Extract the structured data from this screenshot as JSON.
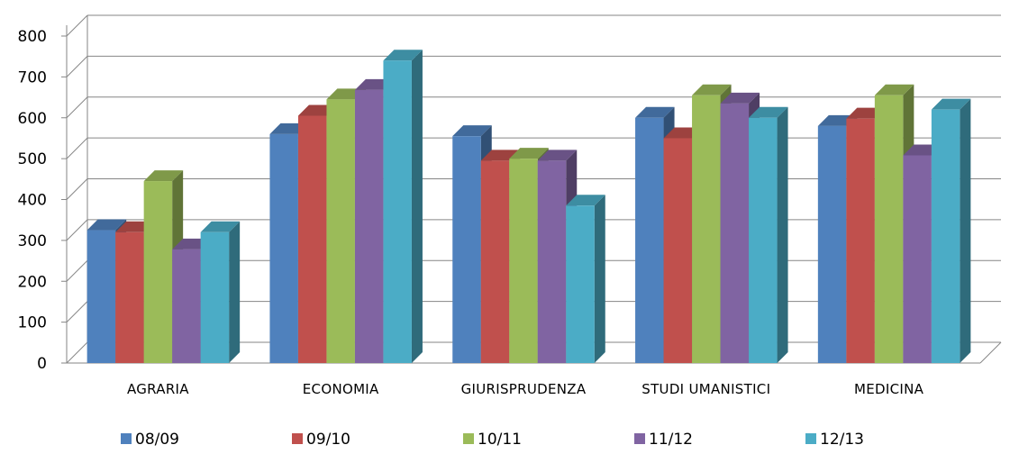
{
  "chart_data": {
    "type": "bar",
    "style": "3d-clustered-column",
    "categories": [
      "AGRARIA",
      "ECONOMIA",
      "GIURISPRUDENZA",
      "STUDI UMANISTICI",
      "MEDICINA"
    ],
    "series": [
      {
        "name": "08/09",
        "color": "#4F81BD",
        "values": [
          325,
          560,
          555,
          600,
          580
        ]
      },
      {
        "name": "09/10",
        "color": "#C0504D",
        "values": [
          320,
          605,
          495,
          550,
          598
        ]
      },
      {
        "name": "10/11",
        "color": "#9BBB59",
        "values": [
          445,
          645,
          500,
          655,
          655
        ]
      },
      {
        "name": "11/12",
        "color": "#8064A2",
        "values": [
          278,
          668,
          495,
          635,
          508
        ]
      },
      {
        "name": "12/13",
        "color": "#4BACC6",
        "values": [
          320,
          740,
          385,
          600,
          620
        ]
      }
    ],
    "ylim": [
      0,
      800
    ],
    "yticks": [
      "0",
      "100",
      "200",
      "300",
      "400",
      "500",
      "600",
      "700",
      "800"
    ],
    "grid": true,
    "legend_position": "bottom",
    "title": "",
    "xlabel": "",
    "ylabel": ""
  }
}
